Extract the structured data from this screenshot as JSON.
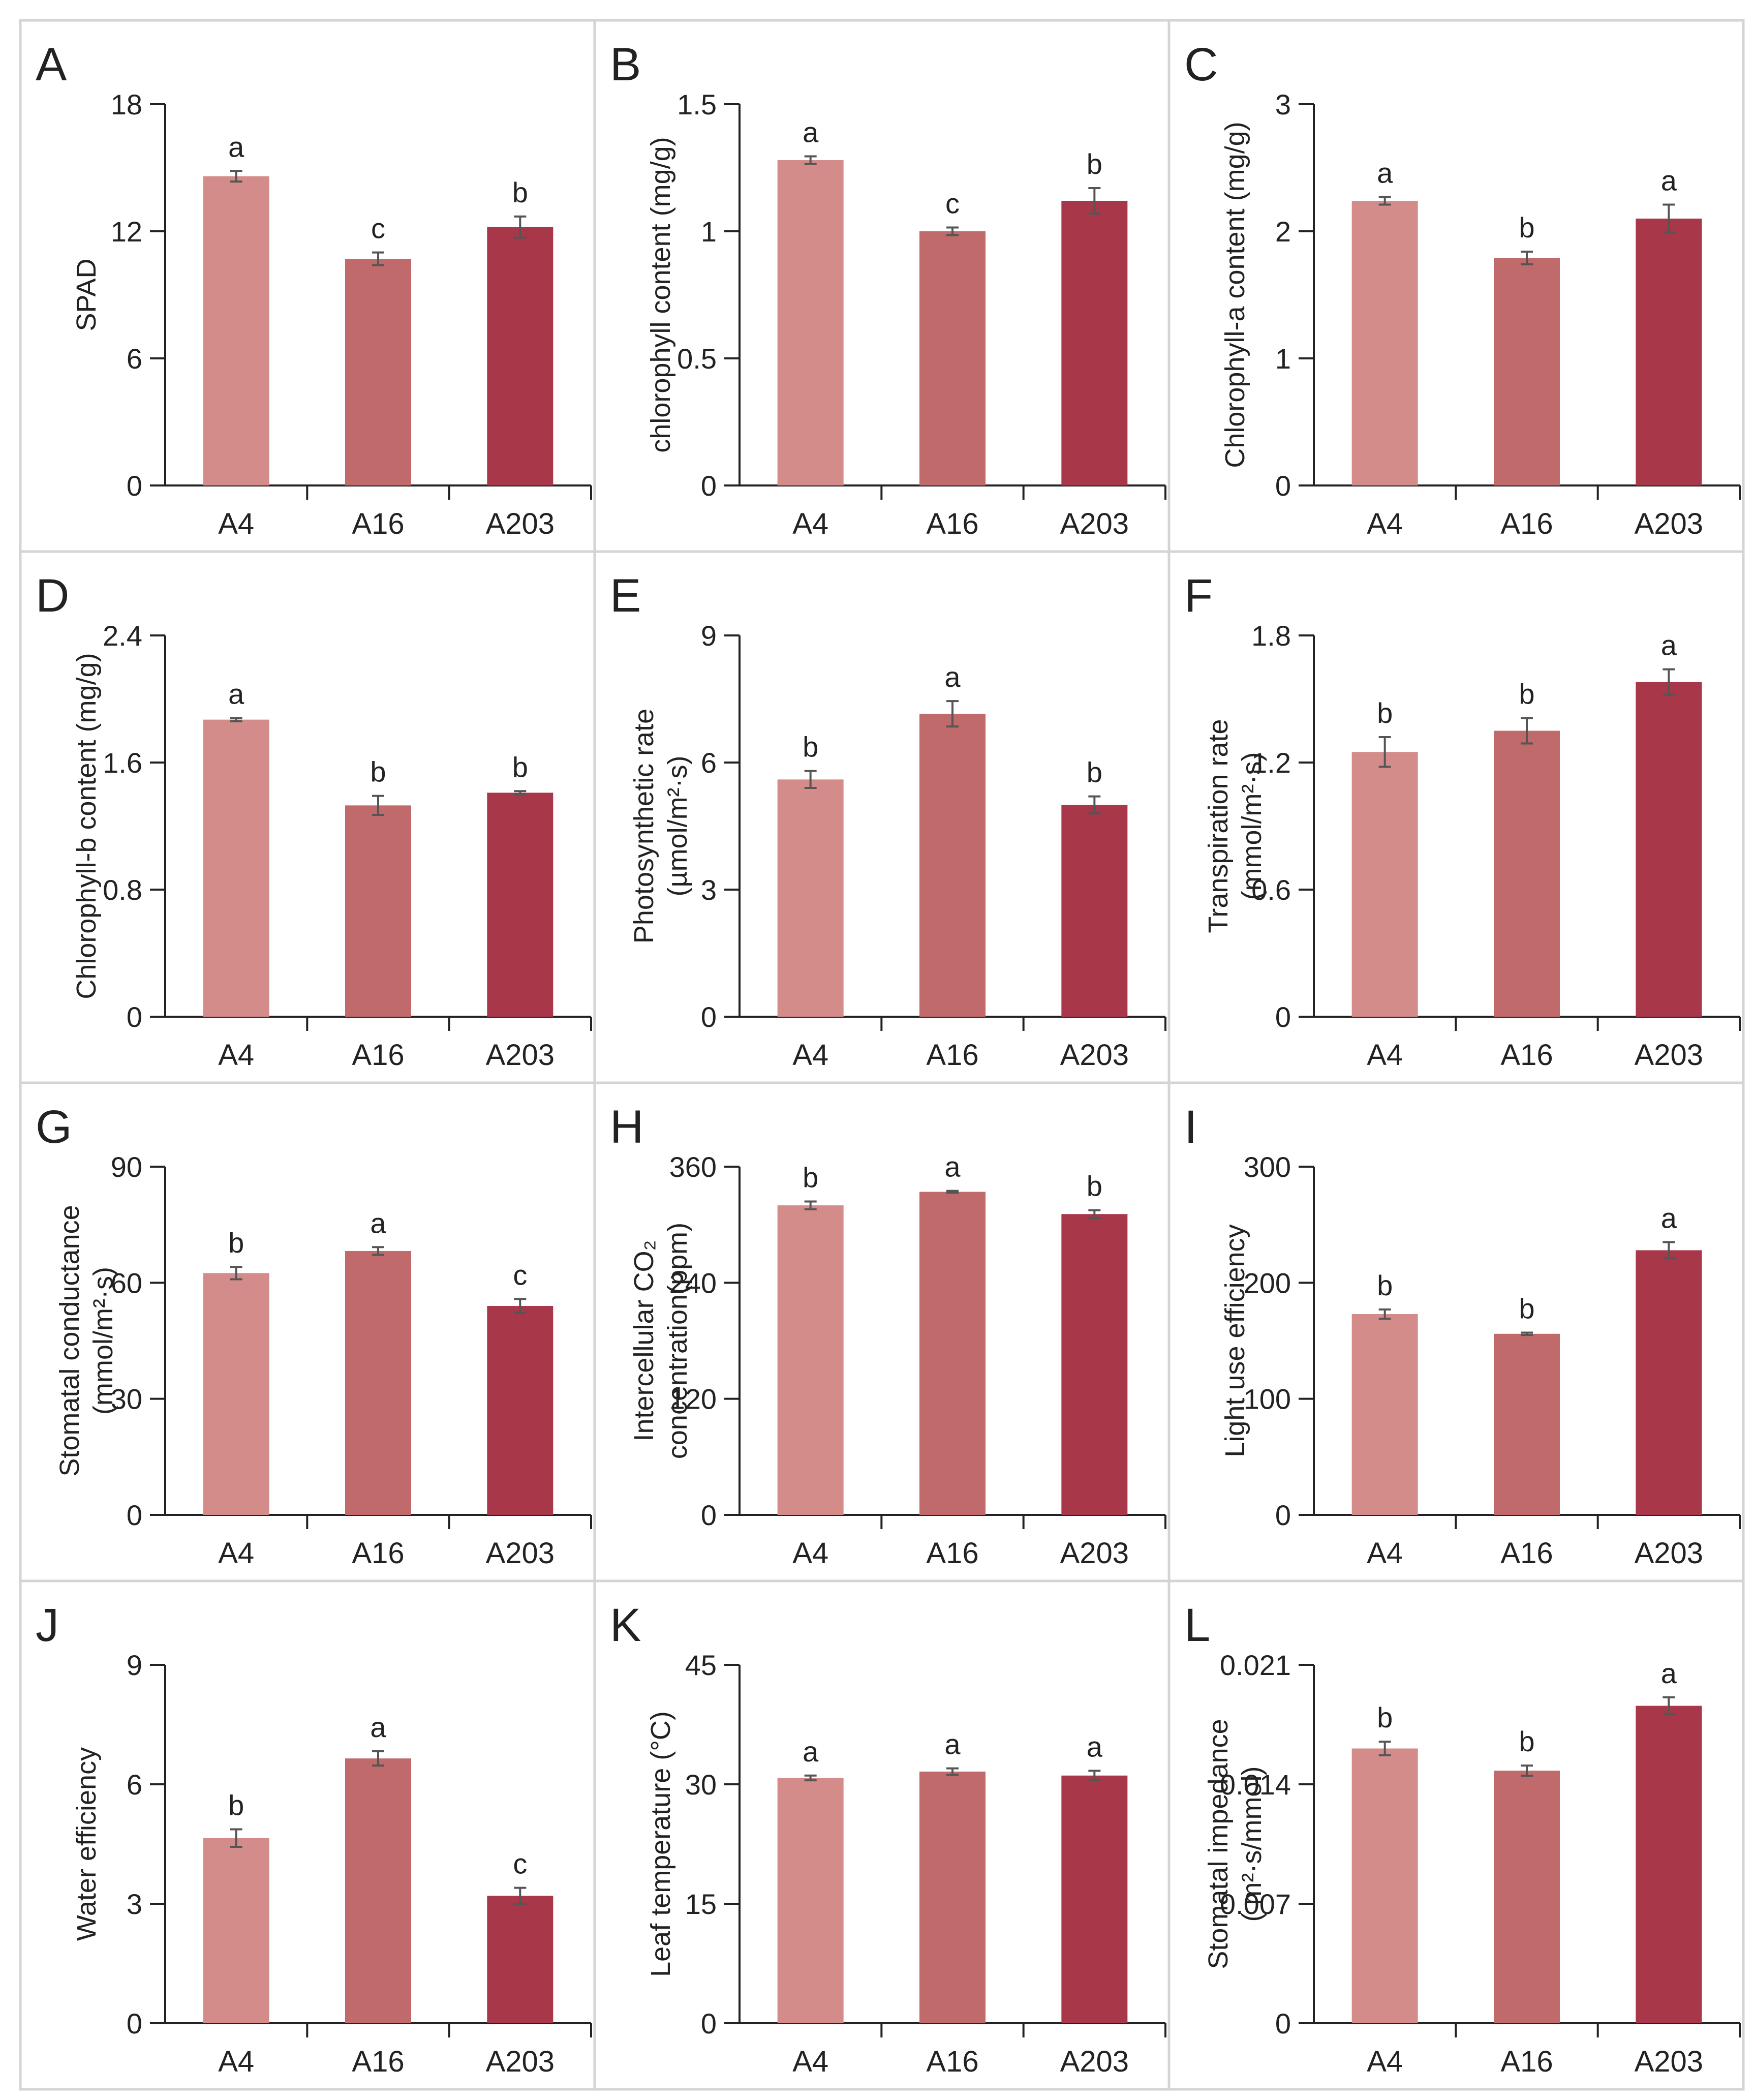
{
  "figure": {
    "group_categories": [
      "A4",
      "A16",
      "A203"
    ],
    "bar_colors": [
      "#d48c8a",
      "#c06a6b",
      "#a8374a"
    ]
  },
  "chart_data": [
    {
      "type": "bar",
      "panel": "A",
      "ylabel": [
        "SPAD"
      ],
      "categories": [
        "A4",
        "A16",
        "A203"
      ],
      "values": [
        14.6,
        10.7,
        12.2
      ],
      "errors": [
        0.25,
        0.3,
        0.5
      ],
      "letters": [
        "a",
        "c",
        "b"
      ],
      "ylim": [
        0,
        18
      ],
      "yticks": [
        "0",
        "6",
        "12",
        "18"
      ]
    },
    {
      "type": "bar",
      "panel": "B",
      "ylabel": [
        "chlorophyll content (mg/g)"
      ],
      "categories": [
        "A4",
        "A16",
        "A203"
      ],
      "values": [
        1.28,
        1.0,
        1.12
      ],
      "errors": [
        0.015,
        0.015,
        0.05
      ],
      "letters": [
        "a",
        "c",
        "b"
      ],
      "ylim": [
        0,
        1.5
      ],
      "yticks": [
        "0",
        "0.5",
        "1",
        "1.5"
      ]
    },
    {
      "type": "bar",
      "panel": "C",
      "ylabel": [
        "Chlorophyll-a content (mg/g)"
      ],
      "categories": [
        "A4",
        "A16",
        "A203"
      ],
      "values": [
        2.24,
        1.79,
        2.1
      ],
      "errors": [
        0.03,
        0.05,
        0.11
      ],
      "letters": [
        "a",
        "b",
        "a"
      ],
      "ylim": [
        0,
        3
      ],
      "yticks": [
        "0",
        "1",
        "2",
        "3"
      ]
    },
    {
      "type": "bar",
      "panel": "D",
      "ylabel": [
        "Chlorophyll-b content (mg/g)"
      ],
      "categories": [
        "A4",
        "A16",
        "A203"
      ],
      "values": [
        1.87,
        1.33,
        1.41
      ],
      "errors": [
        0.01,
        0.06,
        0.01
      ],
      "letters": [
        "a",
        "b",
        "b"
      ],
      "ylim": [
        0,
        2.4
      ],
      "yticks": [
        "0",
        "0.8",
        "1.6",
        "2.4"
      ]
    },
    {
      "type": "bar",
      "panel": "E",
      "ylabel": [
        "Photosynthetic rate",
        "(µmol/m²·s)"
      ],
      "categories": [
        "A4",
        "A16",
        "A203"
      ],
      "values": [
        5.6,
        7.15,
        5.0
      ],
      "errors": [
        0.2,
        0.3,
        0.2
      ],
      "letters": [
        "b",
        "a",
        "b"
      ],
      "ylim": [
        0,
        9
      ],
      "yticks": [
        "0",
        "3",
        "6",
        "9"
      ]
    },
    {
      "type": "bar",
      "panel": "F",
      "ylabel": [
        "Transpiration rate",
        "(mmol/m²·s)"
      ],
      "categories": [
        "A4",
        "A16",
        "A203"
      ],
      "values": [
        1.25,
        1.35,
        1.58
      ],
      "errors": [
        0.07,
        0.06,
        0.06
      ],
      "letters": [
        "b",
        "b",
        "a"
      ],
      "ylim": [
        0,
        1.8
      ],
      "yticks": [
        "0",
        "0.6",
        "1.2",
        "1.8"
      ]
    },
    {
      "type": "bar",
      "panel": "G",
      "ylabel": [
        "Stomatal conductance",
        "(mmol/m²·s)"
      ],
      "categories": [
        "A4",
        "A16",
        "A203"
      ],
      "values": [
        62.5,
        68.2,
        54.0
      ],
      "errors": [
        1.6,
        1.0,
        1.8
      ],
      "letters": [
        "b",
        "a",
        "c"
      ],
      "ylim": [
        0,
        90
      ],
      "yticks": [
        "0",
        "30",
        "60",
        "90"
      ]
    },
    {
      "type": "bar",
      "panel": "H",
      "ylabel": [
        "Intercellular CO₂",
        "concentration(ppm)"
      ],
      "categories": [
        "A4",
        "A16",
        "A203"
      ],
      "values": [
        320,
        334,
        311
      ],
      "errors": [
        4,
        1,
        4
      ],
      "letters": [
        "b",
        "a",
        "b"
      ],
      "ylim": [
        0,
        360
      ],
      "yticks": [
        "0",
        "120",
        "240",
        "360"
      ]
    },
    {
      "type": "bar",
      "panel": "I",
      "ylabel": [
        "Light use efficiency"
      ],
      "categories": [
        "A4",
        "A16",
        "A203"
      ],
      "values": [
        173,
        156,
        228
      ],
      "errors": [
        4,
        1,
        7
      ],
      "letters": [
        "b",
        "b",
        "a"
      ],
      "ylim": [
        0,
        300
      ],
      "yticks": [
        "0",
        "100",
        "200",
        "300"
      ]
    },
    {
      "type": "bar",
      "panel": "J",
      "ylabel": [
        "Water efficiency"
      ],
      "categories": [
        "A4",
        "A16",
        "A203"
      ],
      "values": [
        4.65,
        6.65,
        3.2
      ],
      "errors": [
        0.22,
        0.18,
        0.2
      ],
      "letters": [
        "b",
        "a",
        "c"
      ],
      "ylim": [
        0,
        9
      ],
      "yticks": [
        "0",
        "3",
        "6",
        "9"
      ]
    },
    {
      "type": "bar",
      "panel": "K",
      "ylabel": [
        "Leaf temperature (°C)"
      ],
      "categories": [
        "A4",
        "A16",
        "A203"
      ],
      "values": [
        30.8,
        31.6,
        31.1
      ],
      "errors": [
        0.3,
        0.4,
        0.6
      ],
      "letters": [
        "a",
        "a",
        "a"
      ],
      "ylim": [
        0,
        45
      ],
      "yticks": [
        "0",
        "15",
        "30",
        "45"
      ]
    },
    {
      "type": "bar",
      "panel": "L",
      "ylabel": [
        "Stomatal impedance",
        "( m²·s/mmol)"
      ],
      "categories": [
        "A4",
        "A16",
        "A203"
      ],
      "values": [
        0.0161,
        0.0148,
        0.0186
      ],
      "errors": [
        0.0004,
        0.0003,
        0.0005
      ],
      "letters": [
        "b",
        "b",
        "a"
      ],
      "ylim": [
        0,
        0.021
      ],
      "yticks": [
        "0",
        "0.007",
        "0.014",
        "0.021"
      ]
    }
  ]
}
